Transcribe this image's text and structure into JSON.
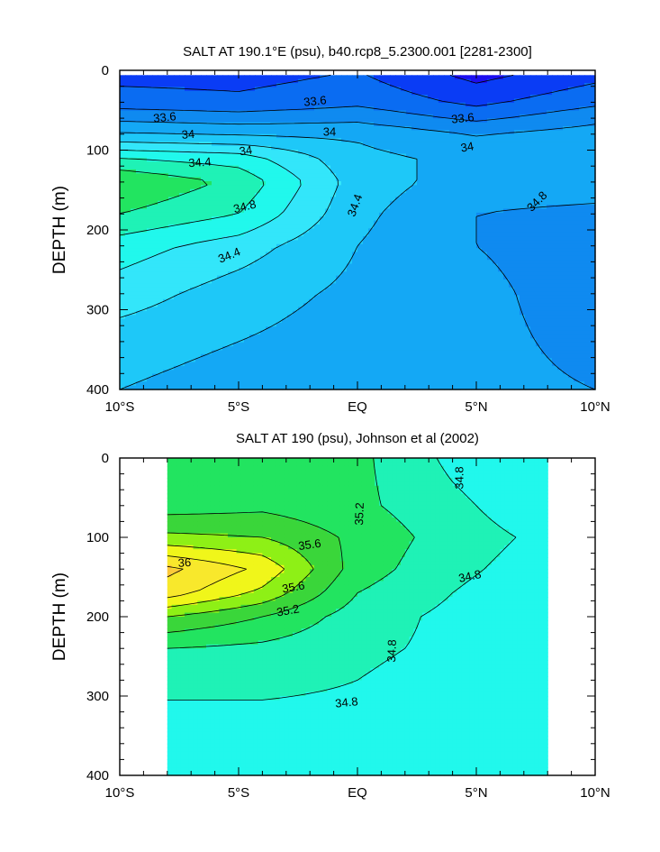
{
  "chart_data": [
    {
      "type": "heatmap",
      "subtype": "filled-contour",
      "title": "SALT AT 190.1°E (psu), b40.rcp8_5.2300.001 [2281-2300]",
      "ylabel": "DEPTH (m)",
      "xlabel": "",
      "x_range": [
        -10,
        10
      ],
      "ylim": [
        400,
        0
      ],
      "x_ticks": [
        "10°S",
        "5°S",
        "EQ",
        "5°N",
        "10°N"
      ],
      "y_ticks": [
        "0",
        "100",
        "200",
        "300",
        "400"
      ],
      "contour_interval": 0.2,
      "color_levels": {
        "33.0": "#1c0ef0",
        "33.4": "#0a3cf5",
        "33.6": "#0a6cf2",
        "33.8": "#0f8af0",
        "34.0": "#14a8f5",
        "34.2": "#1ec8f8",
        "34.4": "#33e6fa",
        "34.6": "#21f8ec",
        "34.8": "#1ff2b6",
        "35.0": "#22e460",
        "35.2": "#3ad63a"
      },
      "contour_labels": [
        "33.6",
        "33.6",
        "33.6",
        "34",
        "34",
        "34",
        "34",
        "34.4",
        "34.4",
        "34.4",
        "34.8",
        "34.8"
      ],
      "profiles": [
        {
          "x": -10,
          "depth": [
            0,
            40,
            60,
            75,
            90,
            110,
            140,
            180,
            220,
            280,
            340,
            400
          ],
          "salinity": [
            33.5,
            33.7,
            33.95,
            34.15,
            34.4,
            34.8,
            35.2,
            35.0,
            34.7,
            34.5,
            34.3,
            34.2
          ]
        },
        {
          "x": -5,
          "depth": [
            0,
            40,
            60,
            75,
            90,
            110,
            140,
            180,
            220,
            280,
            340,
            400
          ],
          "salinity": [
            33.5,
            33.65,
            33.9,
            34.1,
            34.35,
            34.7,
            34.95,
            34.8,
            34.5,
            34.3,
            34.2,
            34.1
          ]
        },
        {
          "x": 0,
          "depth": [
            0,
            40,
            60,
            75,
            90,
            110,
            140,
            180,
            220,
            280,
            340,
            400
          ],
          "salinity": [
            33.6,
            33.75,
            33.95,
            34.1,
            34.2,
            34.25,
            34.3,
            34.25,
            34.2,
            34.15,
            34.1,
            34.05
          ]
        },
        {
          "x": 5,
          "depth": [
            0,
            40,
            60,
            75,
            90,
            110,
            140,
            180,
            220,
            280,
            340,
            400
          ],
          "salinity": [
            33.3,
            33.55,
            33.75,
            33.95,
            34.05,
            34.15,
            34.1,
            34.0,
            34.0,
            34.05,
            34.05,
            34.05
          ]
        },
        {
          "x": 10,
          "depth": [
            0,
            40,
            60,
            75,
            90,
            110,
            140,
            180,
            220,
            280,
            340,
            400
          ],
          "salinity": [
            33.5,
            33.75,
            33.95,
            34.05,
            34.15,
            34.2,
            34.1,
            33.95,
            33.9,
            33.9,
            33.95,
            34.0
          ]
        }
      ]
    },
    {
      "type": "heatmap",
      "subtype": "filled-contour",
      "title": "SALT AT 190 (psu), Johnson et al (2002)",
      "ylabel": "DEPTH (m)",
      "xlabel": "",
      "x_range": [
        -10,
        10
      ],
      "data_x_range": [
        -8,
        8
      ],
      "ylim": [
        400,
        0
      ],
      "x_ticks": [
        "10°S",
        "5°S",
        "EQ",
        "5°N",
        "10°N"
      ],
      "y_ticks": [
        "0",
        "100",
        "200",
        "300",
        "400"
      ],
      "contour_interval": 0.2,
      "color_levels": {
        "34.6": "#21f8ec",
        "34.8": "#1ff2b6",
        "35.0": "#22e460",
        "35.2": "#3ad63a",
        "35.4": "#8ef016",
        "35.6": "#f0f61a",
        "35.8": "#f8e82c",
        "36.0": "#fcc83a"
      },
      "contour_labels": [
        "34.8",
        "34.8",
        "34.8",
        "34.8",
        "35.2",
        "35.2",
        "35.6",
        "35.6",
        "36"
      ],
      "profiles": [
        {
          "x": -8,
          "depth": [
            0,
            60,
            100,
            140,
            170,
            200,
            240,
            280,
            330,
            400
          ],
          "salinity": [
            35.1,
            35.1,
            35.45,
            36.05,
            35.9,
            35.4,
            35.0,
            34.85,
            34.75,
            34.7
          ]
        },
        {
          "x": -4,
          "depth": [
            0,
            60,
            100,
            140,
            170,
            200,
            240,
            280,
            330,
            400
          ],
          "salinity": [
            35.1,
            35.15,
            35.4,
            35.75,
            35.55,
            35.2,
            34.95,
            34.85,
            34.75,
            34.7
          ]
        },
        {
          "x": 0,
          "depth": [
            0,
            60,
            100,
            140,
            170,
            200,
            240,
            280,
            330,
            400
          ],
          "salinity": [
            35.05,
            35.05,
            35.15,
            35.1,
            35.0,
            34.9,
            34.85,
            34.8,
            34.75,
            34.7
          ]
        },
        {
          "x": 4,
          "depth": [
            0,
            60,
            100,
            140,
            170,
            200,
            240,
            280,
            330,
            400
          ],
          "salinity": [
            34.75,
            34.85,
            34.9,
            34.85,
            34.8,
            34.75,
            34.75,
            34.7,
            34.7,
            34.7
          ]
        },
        {
          "x": 8,
          "depth": [
            0,
            60,
            100,
            140,
            170,
            200,
            240,
            280,
            330,
            400
          ],
          "salinity": [
            34.55,
            34.65,
            34.75,
            34.7,
            34.65,
            34.7,
            34.7,
            34.7,
            34.7,
            34.7
          ]
        }
      ]
    }
  ]
}
